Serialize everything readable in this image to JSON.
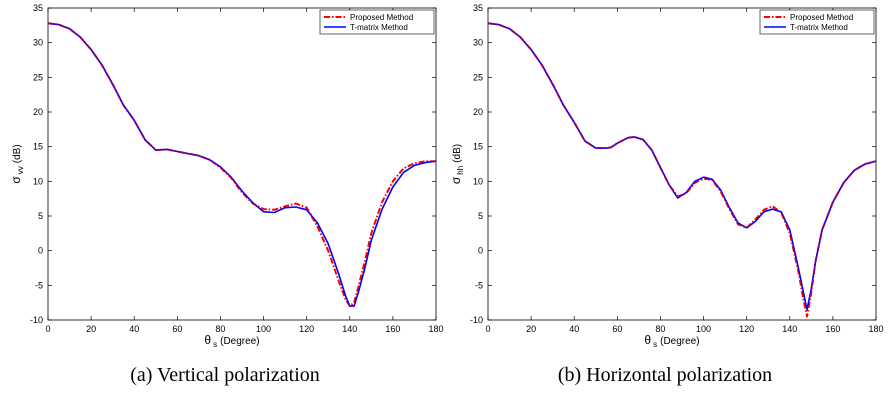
{
  "chart_data": [
    {
      "type": "line",
      "caption": "(a) Vertical polarization",
      "ylabel_symbol": "σ",
      "ylabel_sub": "vv",
      "ylabel_unit": "(dB)",
      "xlabel_symbol": "θ",
      "xlabel_sub": "s",
      "xlabel_unit": "(Degree)",
      "xlim": [
        0,
        180
      ],
      "ylim": [
        -10,
        35
      ],
      "xticks": [
        0,
        20,
        40,
        60,
        80,
        100,
        120,
        140,
        160,
        180
      ],
      "yticks": [
        -10,
        -5,
        0,
        5,
        10,
        15,
        20,
        25,
        30,
        35
      ],
      "grid": false,
      "legend_position": "top-right",
      "series": [
        {
          "name": "Proposed Method",
          "color": "#ff0000",
          "style": "dash-dot",
          "x": [
            0,
            5,
            10,
            15,
            20,
            25,
            30,
            35,
            40,
            45,
            50,
            55,
            60,
            65,
            70,
            75,
            80,
            85,
            90,
            95,
            100,
            105,
            110,
            115,
            120,
            125,
            130,
            135,
            138,
            140,
            142,
            144,
            147,
            150,
            155,
            160,
            165,
            170,
            175,
            180
          ],
          "y": [
            32.8,
            32.6,
            32.0,
            30.8,
            29.0,
            26.8,
            24.0,
            21.0,
            18.8,
            16.0,
            14.5,
            14.6,
            14.3,
            14.0,
            13.7,
            13.1,
            12.0,
            10.5,
            8.4,
            6.8,
            6.0,
            5.9,
            6.4,
            6.8,
            6.2,
            3.5,
            0.0,
            -4.5,
            -7.0,
            -8.0,
            -7.5,
            -5.2,
            -1.5,
            2.5,
            7.0,
            10.0,
            11.9,
            12.6,
            12.9,
            12.9
          ]
        },
        {
          "name": "T-matrix Method",
          "color": "#0000ff",
          "style": "solid",
          "x": [
            0,
            5,
            10,
            15,
            20,
            25,
            30,
            35,
            40,
            45,
            50,
            55,
            60,
            65,
            70,
            75,
            80,
            85,
            90,
            95,
            100,
            105,
            110,
            115,
            120,
            125,
            130,
            135,
            138,
            140,
            142,
            144,
            147,
            150,
            155,
            160,
            165,
            170,
            175,
            180
          ],
          "y": [
            32.8,
            32.6,
            32.0,
            30.8,
            29.0,
            26.8,
            24.0,
            21.0,
            18.8,
            16.0,
            14.5,
            14.6,
            14.3,
            14.0,
            13.7,
            13.1,
            12.1,
            10.6,
            8.6,
            6.9,
            5.6,
            5.5,
            6.2,
            6.3,
            5.9,
            4.0,
            1.0,
            -3.5,
            -6.5,
            -8.0,
            -8.0,
            -6.0,
            -2.5,
            1.5,
            6.0,
            9.2,
            11.3,
            12.3,
            12.7,
            12.9
          ]
        }
      ]
    },
    {
      "type": "line",
      "caption": "(b) Horizontal polarization",
      "ylabel_symbol": "σ",
      "ylabel_sub": "hh",
      "ylabel_unit": "(dB)",
      "xlabel_symbol": "θ",
      "xlabel_sub": "s",
      "xlabel_unit": "(Degree)",
      "xlim": [
        0,
        180
      ],
      "ylim": [
        -10,
        35
      ],
      "xticks": [
        0,
        20,
        40,
        60,
        80,
        100,
        120,
        140,
        160,
        180
      ],
      "yticks": [
        -10,
        -5,
        0,
        5,
        10,
        15,
        20,
        25,
        30,
        35
      ],
      "grid": false,
      "legend_position": "top-right",
      "series": [
        {
          "name": "Proposed Method",
          "color": "#ff0000",
          "style": "dash-dot",
          "x": [
            0,
            5,
            10,
            15,
            20,
            25,
            30,
            35,
            40,
            45,
            50,
            55,
            57,
            60,
            65,
            68,
            72,
            76,
            80,
            84,
            88,
            92,
            96,
            100,
            104,
            108,
            112,
            116,
            120,
            124,
            128,
            132,
            136,
            140,
            144,
            146,
            148,
            150,
            152,
            155,
            160,
            165,
            170,
            175,
            180
          ],
          "y": [
            32.8,
            32.6,
            32.0,
            30.8,
            29.0,
            26.8,
            24.0,
            21.0,
            18.5,
            15.8,
            14.8,
            14.8,
            14.9,
            15.5,
            16.3,
            16.4,
            16.0,
            14.5,
            12.0,
            9.5,
            7.8,
            8.3,
            9.8,
            10.4,
            10.2,
            8.5,
            6.0,
            3.8,
            3.3,
            4.5,
            5.9,
            6.4,
            5.5,
            2.5,
            -3.0,
            -6.5,
            -9.5,
            -6.0,
            -1.5,
            3.0,
            7.0,
            9.8,
            11.6,
            12.5,
            12.9
          ]
        },
        {
          "name": "T-matrix Method",
          "color": "#0000ff",
          "style": "solid",
          "x": [
            0,
            5,
            10,
            15,
            20,
            25,
            30,
            35,
            40,
            45,
            50,
            55,
            57,
            60,
            65,
            68,
            72,
            76,
            80,
            84,
            88,
            92,
            96,
            100,
            104,
            108,
            112,
            116,
            120,
            124,
            128,
            132,
            136,
            140,
            144,
            146,
            148,
            150,
            152,
            155,
            160,
            165,
            170,
            175,
            180
          ],
          "y": [
            32.8,
            32.6,
            32.0,
            30.8,
            29.0,
            26.8,
            24.0,
            21.0,
            18.5,
            15.8,
            14.8,
            14.8,
            14.9,
            15.5,
            16.3,
            16.4,
            16.0,
            14.5,
            12.0,
            9.5,
            7.6,
            8.4,
            10.0,
            10.6,
            10.3,
            8.7,
            6.2,
            4.0,
            3.3,
            4.2,
            5.6,
            6.0,
            5.6,
            3.0,
            -2.5,
            -5.5,
            -8.5,
            -5.5,
            -1.5,
            3.0,
            7.0,
            9.8,
            11.6,
            12.5,
            12.9
          ]
        }
      ]
    }
  ]
}
